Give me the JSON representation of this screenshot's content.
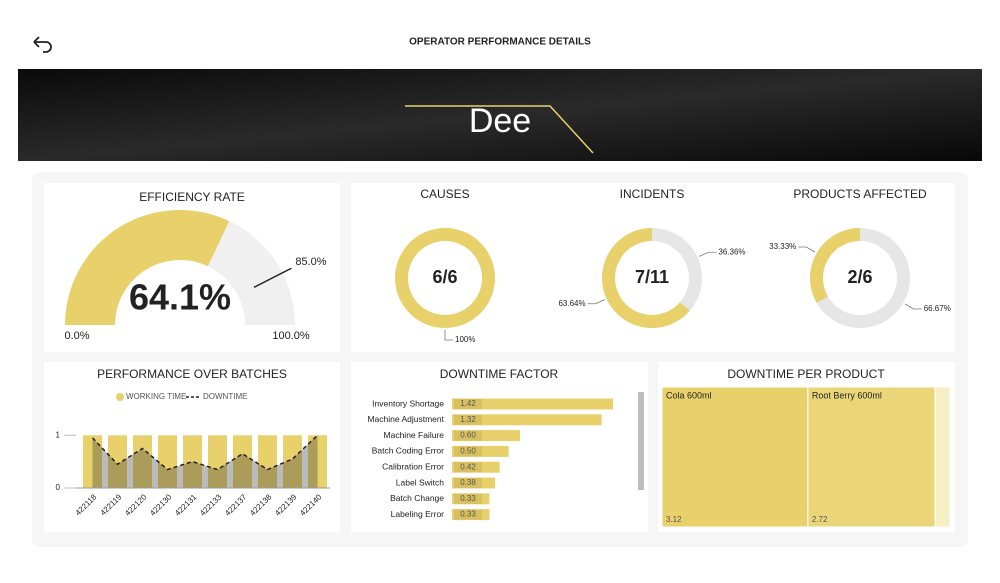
{
  "header": {
    "title": "OPERATOR PERFORMANCE DETAILS",
    "name": "Dee"
  },
  "efficiency": {
    "title": "EFFICIENCY RATE",
    "value": 64.1,
    "value_label": "64.1%",
    "target": 85.0,
    "target_label": "85.0%",
    "min": 0,
    "min_label": "0.0%",
    "max": 100,
    "max_label": "100.0%",
    "color": "#e8d06b",
    "track_color": "#f0f0f0"
  },
  "donuts": [
    {
      "title": "CAUSES",
      "center": "6/6",
      "slices": [
        {
          "value": 100,
          "label": "100%",
          "color": "#e8d06b"
        }
      ]
    },
    {
      "title": "INCIDENTS",
      "center": "7/11",
      "slices": [
        {
          "value": 36.36,
          "label": "36.36%",
          "color": "#e6e6e6"
        },
        {
          "value": 63.64,
          "label": "63.64%",
          "color": "#e8d06b"
        }
      ]
    },
    {
      "title": "PRODUCTS AFFECTED",
      "center": "2/6",
      "slices": [
        {
          "value": 66.67,
          "label": "66.67%",
          "color": "#e6e6e6"
        },
        {
          "value": 33.33,
          "label": "33.33%",
          "color": "#e8d06b"
        }
      ]
    }
  ],
  "chart_data": [
    {
      "type": "bar",
      "title": "PERFORMANCE OVER BATCHES",
      "categories": [
        "422118",
        "422119",
        "422120",
        "422130",
        "422131",
        "422133",
        "422137",
        "422138",
        "422139",
        "422140"
      ],
      "series": [
        {
          "name": "WORKING TIME",
          "color": "#e8d06b",
          "values": [
            1,
            1,
            1,
            1,
            1,
            1,
            1,
            1,
            1,
            1
          ]
        },
        {
          "name": "DOWNTIME",
          "color": "#222222",
          "values": [
            0.95,
            0.45,
            0.75,
            0.35,
            0.5,
            0.35,
            0.65,
            0.35,
            0.55,
            1.0
          ]
        }
      ],
      "ylim": [
        0,
        1.1
      ],
      "yticks": [
        0,
        1
      ]
    },
    {
      "type": "hbar",
      "title": "DOWNTIME FACTOR",
      "categories": [
        "Inventory Shortage",
        "Machine Adjustment",
        "Machine Failure",
        "Batch Coding Error",
        "Calibration Error",
        "Label Switch",
        "Batch Change",
        "Labeling Error"
      ],
      "values": [
        1.42,
        1.32,
        0.6,
        0.5,
        0.42,
        0.38,
        0.33,
        0.33
      ],
      "value_labels": [
        "1.42",
        "1.32",
        "0.60",
        "0.50",
        "0.42",
        "0.38",
        "0.33",
        "0.33"
      ],
      "color": "#e8d06b"
    },
    {
      "type": "treemap",
      "title": "DOWNTIME PER PRODUCT",
      "categories": [
        "Cola 600ml",
        "Root Berry 600ml",
        null
      ],
      "values": [
        3.12,
        2.72,
        0.32
      ],
      "colors": [
        "#e8d06b",
        "#ead678",
        "#f7efc4"
      ]
    }
  ]
}
